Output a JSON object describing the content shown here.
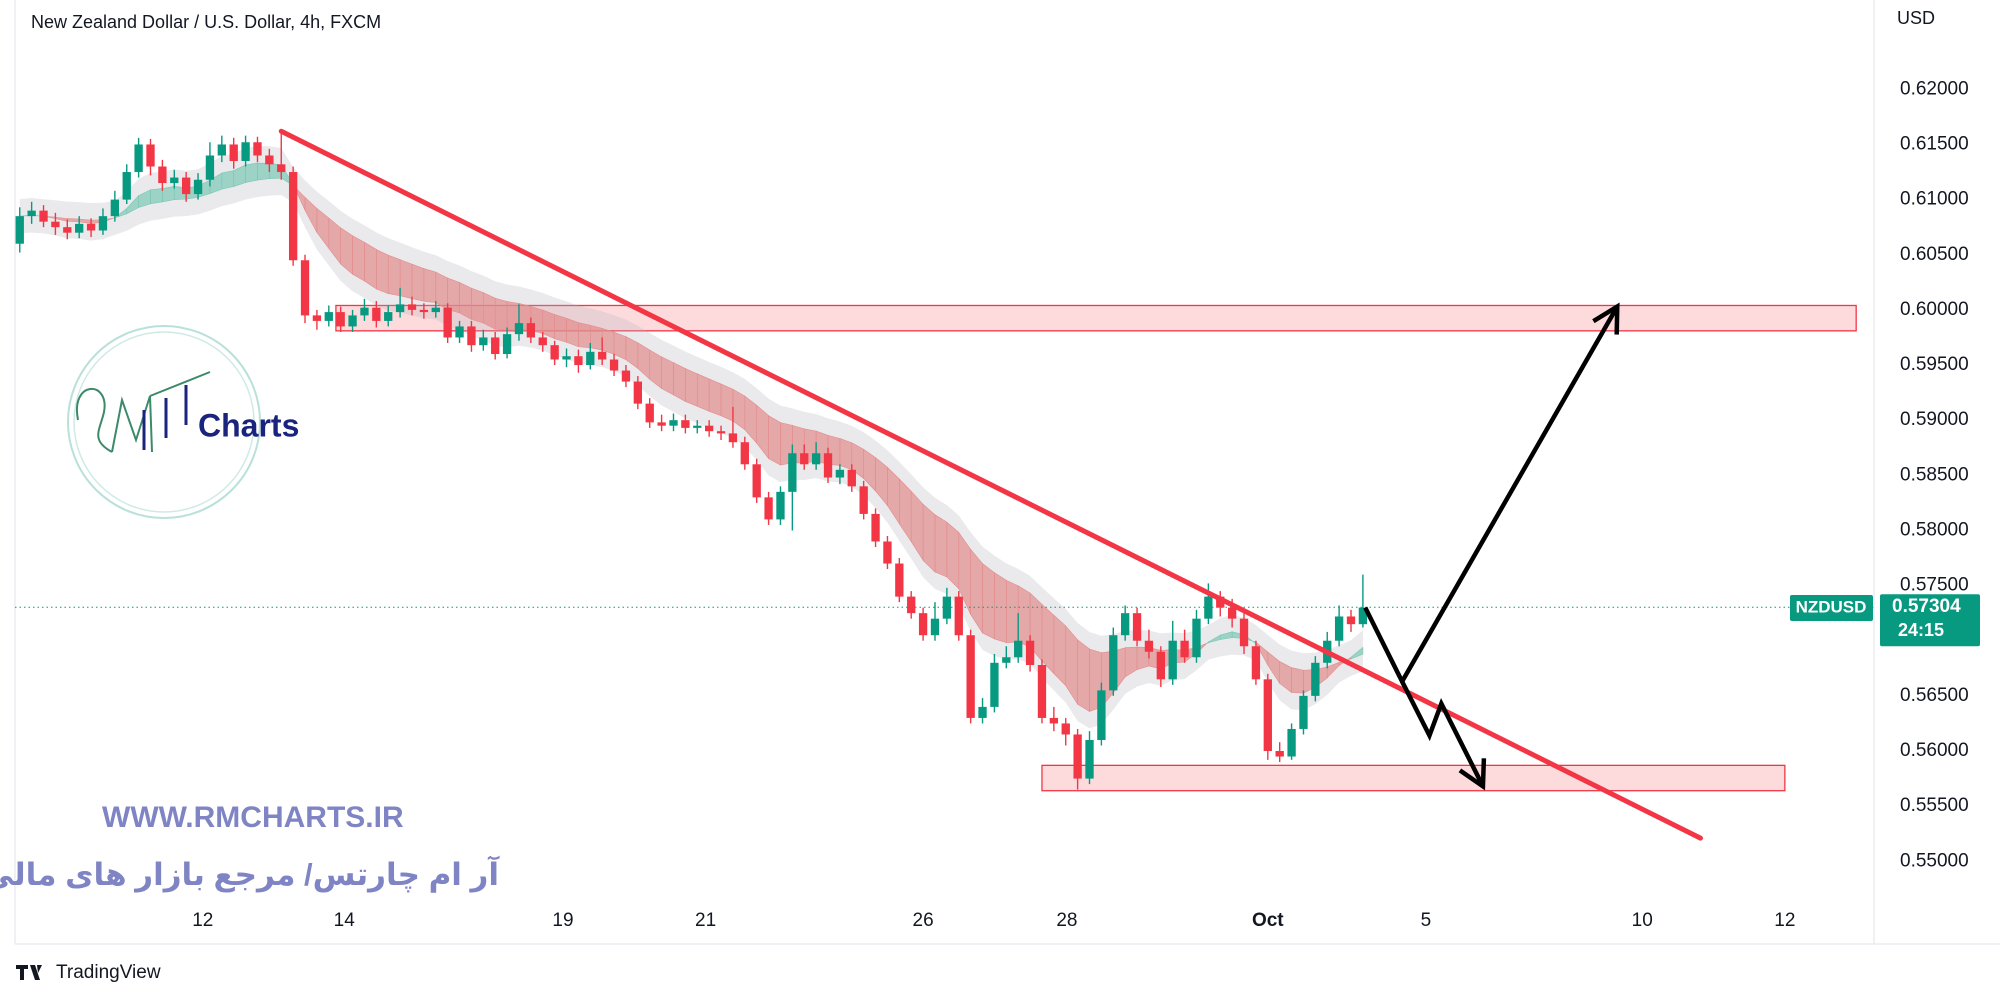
{
  "chart_data": {
    "type": "candlestick",
    "title": "New Zealand Dollar / U.S. Dollar, 4h, FXCM",
    "y_axis_label": "USD",
    "up_color": "#089981",
    "down_color": "#f23645",
    "grid": false,
    "xlim": [
      -0.4,
      156
    ],
    "ylim": [
      0.5425,
      0.6281
    ],
    "xticks": [
      {
        "value": 15.4,
        "label": "12"
      },
      {
        "value": 27.3,
        "label": "14"
      },
      {
        "value": 45.7,
        "label": "19"
      },
      {
        "value": 57.7,
        "label": "21"
      },
      {
        "value": 76.0,
        "label": "26"
      },
      {
        "value": 88.1,
        "label": "28"
      },
      {
        "value": 105.0,
        "label": "Oct"
      },
      {
        "value": 118.3,
        "label": "5"
      },
      {
        "value": 136.5,
        "label": "10"
      },
      {
        "value": 148.5,
        "label": "12"
      }
    ],
    "yticks": [
      {
        "value": 0.55,
        "label": "0.55000"
      },
      {
        "value": 0.555,
        "label": "0.55500"
      },
      {
        "value": 0.56,
        "label": "0.56000"
      },
      {
        "value": 0.565,
        "label": "0.56500"
      },
      {
        "value": 0.57,
        "label": "0.57000"
      },
      {
        "value": 0.575,
        "label": "0.57500"
      },
      {
        "value": 0.58,
        "label": "0.58000"
      },
      {
        "value": 0.585,
        "label": "0.58500"
      },
      {
        "value": 0.59,
        "label": "0.59000"
      },
      {
        "value": 0.595,
        "label": "0.59500"
      },
      {
        "value": 0.6,
        "label": "0.60000"
      },
      {
        "value": 0.605,
        "label": "0.60500"
      },
      {
        "value": 0.61,
        "label": "0.61000"
      },
      {
        "value": 0.615,
        "label": "0.61500"
      },
      {
        "value": 0.62,
        "label": "0.62000"
      }
    ],
    "open": [
      0.606,
      0.6085,
      0.609,
      0.608,
      0.6075,
      0.607,
      0.6078,
      0.6072,
      0.6085,
      0.61,
      0.6125,
      0.615,
      0.613,
      0.6115,
      0.612,
      0.6105,
      0.6118,
      0.614,
      0.615,
      0.6135,
      0.6152,
      0.614,
      0.6132,
      0.6125,
      0.6045,
      0.5995,
      0.599,
      0.5998,
      0.5985,
      0.5995,
      0.6002,
      0.599,
      0.5998,
      0.6005,
      0.6,
      0.5998,
      0.6002,
      0.5975,
      0.5985,
      0.5968,
      0.5975,
      0.596,
      0.5978,
      0.5988,
      0.5975,
      0.5968,
      0.5955,
      0.5958,
      0.595,
      0.5962,
      0.5955,
      0.5945,
      0.5935,
      0.5915,
      0.5898,
      0.5895,
      0.59,
      0.5893,
      0.5895,
      0.589,
      0.5888,
      0.588,
      0.586,
      0.583,
      0.581,
      0.5835,
      0.587,
      0.586,
      0.587,
      0.5848,
      0.5855,
      0.584,
      0.5815,
      0.579,
      0.577,
      0.574,
      0.5725,
      0.5705,
      0.572,
      0.574,
      0.5705,
      0.563,
      0.564,
      0.568,
      0.5685,
      0.57,
      0.5678,
      0.563,
      0.5625,
      0.5615,
      0.5575,
      0.561,
      0.5655,
      0.5705,
      0.5725,
      0.57,
      0.569,
      0.5665,
      0.57,
      0.5685,
      0.572,
      0.574,
      0.573,
      0.572,
      0.5695,
      0.5665,
      0.56,
      0.5595,
      0.562,
      0.565,
      0.568,
      0.57,
      0.5722,
      0.5715
    ],
    "high": [
      0.6093,
      0.6098,
      0.6095,
      0.6088,
      0.6082,
      0.6085,
      0.6083,
      0.6092,
      0.6108,
      0.6132,
      0.6156,
      0.6155,
      0.6136,
      0.6127,
      0.6125,
      0.6124,
      0.6152,
      0.6158,
      0.6156,
      0.6158,
      0.6157,
      0.6146,
      0.616,
      0.613,
      0.605,
      0.6,
      0.6004,
      0.6003,
      0.6,
      0.601,
      0.6008,
      0.6004,
      0.602,
      0.6012,
      0.6006,
      0.6008,
      0.6006,
      0.599,
      0.599,
      0.5982,
      0.598,
      0.5984,
      0.6005,
      0.5993,
      0.598,
      0.5972,
      0.5965,
      0.5964,
      0.597,
      0.5975,
      0.596,
      0.595,
      0.594,
      0.592,
      0.5905,
      0.5906,
      0.5905,
      0.59,
      0.59,
      0.5895,
      0.5912,
      0.5885,
      0.5865,
      0.5835,
      0.584,
      0.5878,
      0.5878,
      0.588,
      0.5875,
      0.586,
      0.586,
      0.5845,
      0.582,
      0.5795,
      0.5775,
      0.5745,
      0.573,
      0.5735,
      0.5748,
      0.5745,
      0.571,
      0.5648,
      0.5688,
      0.5695,
      0.5725,
      0.5705,
      0.5683,
      0.564,
      0.563,
      0.562,
      0.5618,
      0.5662,
      0.5712,
      0.5732,
      0.573,
      0.571,
      0.5695,
      0.5718,
      0.571,
      0.5728,
      0.5752,
      0.5745,
      0.5738,
      0.5725,
      0.57,
      0.567,
      0.5608,
      0.5625,
      0.5655,
      0.5686,
      0.5708,
      0.5732,
      0.5728,
      0.576
    ],
    "low": [
      0.6052,
      0.6078,
      0.6075,
      0.6068,
      0.6064,
      0.6065,
      0.6066,
      0.6068,
      0.608,
      0.6096,
      0.612,
      0.6122,
      0.6108,
      0.611,
      0.6098,
      0.61,
      0.6112,
      0.6134,
      0.6128,
      0.613,
      0.6134,
      0.6125,
      0.6118,
      0.604,
      0.5988,
      0.5982,
      0.5985,
      0.598,
      0.598,
      0.599,
      0.5984,
      0.5985,
      0.5993,
      0.5995,
      0.5992,
      0.5993,
      0.597,
      0.597,
      0.5962,
      0.5963,
      0.5955,
      0.5956,
      0.5972,
      0.597,
      0.5962,
      0.595,
      0.5948,
      0.5943,
      0.5946,
      0.595,
      0.594,
      0.593,
      0.591,
      0.5893,
      0.589,
      0.589,
      0.5888,
      0.5888,
      0.5885,
      0.5882,
      0.5875,
      0.5855,
      0.5825,
      0.5805,
      0.5805,
      0.58,
      0.5855,
      0.5855,
      0.5843,
      0.5842,
      0.5835,
      0.581,
      0.5785,
      0.5765,
      0.5735,
      0.572,
      0.57,
      0.57,
      0.5715,
      0.57,
      0.5625,
      0.5625,
      0.5635,
      0.5675,
      0.568,
      0.5672,
      0.5625,
      0.5618,
      0.5605,
      0.5565,
      0.557,
      0.5605,
      0.565,
      0.57,
      0.5695,
      0.5684,
      0.5658,
      0.566,
      0.568,
      0.568,
      0.5715,
      0.5722,
      0.5712,
      0.5688,
      0.566,
      0.5592,
      0.559,
      0.5592,
      0.5615,
      0.5645,
      0.5675,
      0.5695,
      0.5708,
      0.5712
    ],
    "close": [
      0.6085,
      0.609,
      0.608,
      0.6075,
      0.607,
      0.6078,
      0.6072,
      0.6085,
      0.61,
      0.6125,
      0.615,
      0.613,
      0.6115,
      0.612,
      0.6105,
      0.6118,
      0.614,
      0.615,
      0.6135,
      0.6152,
      0.614,
      0.6132,
      0.6125,
      0.6045,
      0.5995,
      0.599,
      0.5998,
      0.5985,
      0.5995,
      0.6002,
      0.599,
      0.5998,
      0.6005,
      0.6,
      0.5998,
      0.6002,
      0.5975,
      0.5985,
      0.5968,
      0.5975,
      0.596,
      0.5978,
      0.5988,
      0.5975,
      0.5968,
      0.5955,
      0.5958,
      0.595,
      0.5962,
      0.5955,
      0.5945,
      0.5935,
      0.5915,
      0.5898,
      0.5895,
      0.59,
      0.5893,
      0.5895,
      0.589,
      0.5888,
      0.588,
      0.586,
      0.583,
      0.581,
      0.5835,
      0.587,
      0.586,
      0.587,
      0.5848,
      0.5855,
      0.584,
      0.5815,
      0.579,
      0.577,
      0.574,
      0.5725,
      0.5705,
      0.572,
      0.574,
      0.5705,
      0.563,
      0.564,
      0.568,
      0.5685,
      0.57,
      0.5678,
      0.563,
      0.5625,
      0.5615,
      0.5575,
      0.561,
      0.5655,
      0.5705,
      0.5725,
      0.57,
      0.569,
      0.5665,
      0.57,
      0.5685,
      0.572,
      0.574,
      0.573,
      0.572,
      0.5695,
      0.5665,
      0.56,
      0.5595,
      0.562,
      0.565,
      0.568,
      0.57,
      0.5722,
      0.5715,
      0.573
    ],
    "last_price": {
      "value": 0.57304,
      "label": "0.57304"
    },
    "symbol": "NZDUSD",
    "countdown": "24:15",
    "trendline": {
      "color": "#f23645",
      "x": [
        22,
        141.4
      ],
      "y": [
        0.6162,
        0.5521
      ]
    },
    "zones": [
      {
        "color": "#f23645",
        "x": [
          26.6,
          154.5
        ],
        "y": [
          0.5981,
          0.6004
        ]
      },
      {
        "color": "#f23645",
        "x": [
          86.0,
          148.5
        ],
        "y": [
          0.5564,
          0.5587
        ]
      }
    ],
    "arrows": [
      {
        "color": "#000000",
        "x": [
          113.2,
          116.3,
          134.4
        ],
        "y": [
          0.573,
          0.5663,
          0.6003
        ]
      },
      {
        "color": "#000000",
        "x": [
          116.3,
          118.6,
          119.6,
          123.1
        ],
        "y": [
          0.5663,
          0.5614,
          0.5643,
          0.5568
        ]
      }
    ]
  },
  "watermark": {
    "logo_text": "Charts",
    "site": "WWW.RMCHARTS.IR",
    "tagline": "آر ام چارتس/ مرجع بازار های مالی"
  },
  "footer": {
    "brand": "TradingView"
  }
}
